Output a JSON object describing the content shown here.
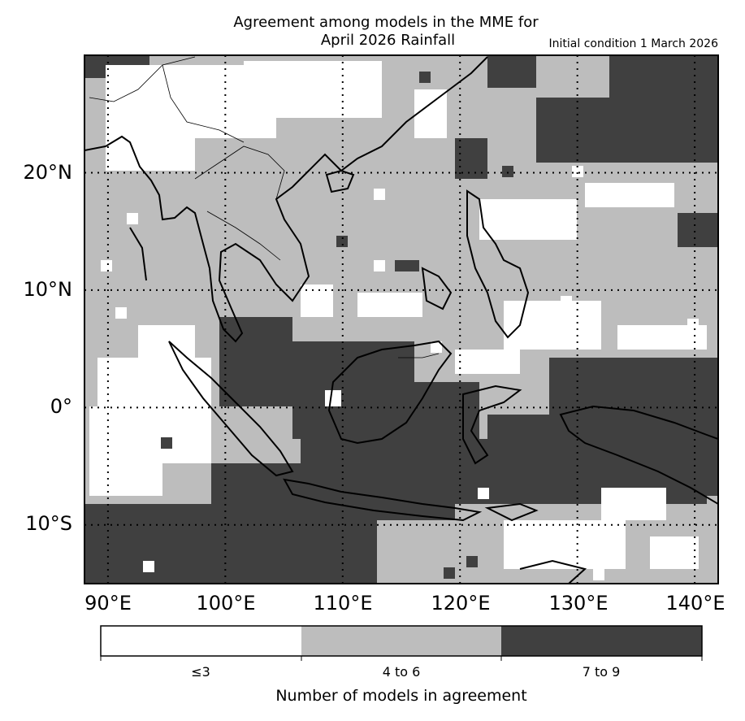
{
  "title_line1": "Agreement among models in the MME for",
  "title_line2": "April 2026  Rainfall",
  "subtitle": "Initial condition 1 March 2026",
  "lat_labels": [
    "20°N",
    "10°N",
    "0°",
    "10°S"
  ],
  "lon_labels": [
    "90°E",
    "100°E",
    "110°E",
    "120°E",
    "130°E",
    "140°E"
  ],
  "colorbar": {
    "title": "Number of models in agreement",
    "categories": [
      {
        "label": "≤3",
        "color": "#ffffff"
      },
      {
        "label": "4 to 6",
        "color": "#bdbdbd"
      },
      {
        "label": "7 to 9",
        "color": "#404040"
      }
    ]
  },
  "map": {
    "lon_range": [
      88,
      142
    ],
    "lat_range": [
      -15,
      30
    ],
    "gridlines": "dotted",
    "grid_lons": [
      90,
      100,
      110,
      120,
      130,
      140
    ],
    "grid_lats": [
      20,
      10,
      0,
      -10
    ]
  }
}
